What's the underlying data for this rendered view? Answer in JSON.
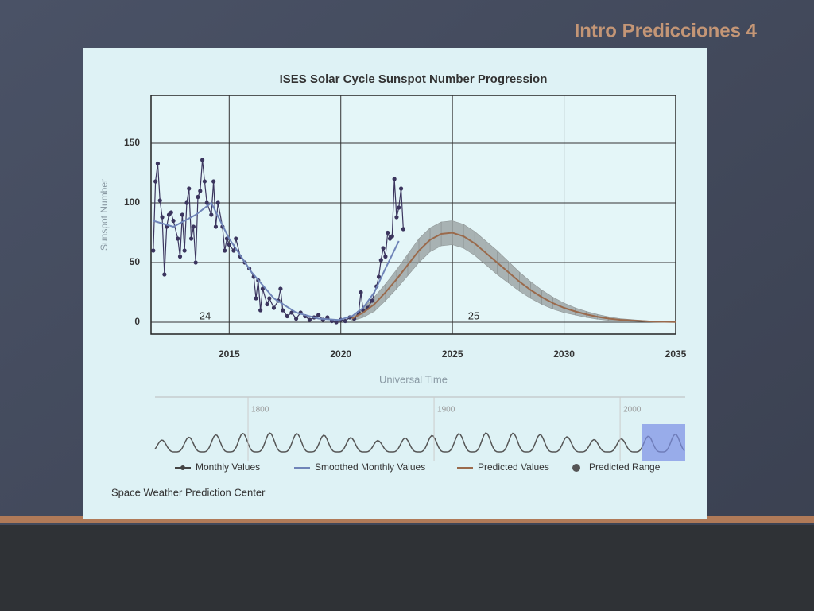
{
  "slide": {
    "title": "Intro Predicciones 4"
  },
  "chart_data": {
    "type": "line",
    "title": "ISES Solar Cycle Sunspot Number Progression",
    "y_label": "Sunspot Number",
    "x_label": "Universal Time",
    "xlim": [
      2011.5,
      2035
    ],
    "xticks": [
      2015,
      2020,
      2025,
      2030,
      2035
    ],
    "ylim": [
      -10,
      190
    ],
    "yticks": [
      0,
      50,
      100,
      150
    ],
    "grid": true,
    "annotations": [
      "24",
      "25"
    ],
    "series": [
      {
        "name": "Monthly Values",
        "color": "#3b355e",
        "x": [
          2011.6,
          2011.7,
          2011.8,
          2011.9,
          2012.0,
          2012.1,
          2012.2,
          2012.3,
          2012.4,
          2012.5,
          2012.7,
          2012.8,
          2012.9,
          2013.0,
          2013.1,
          2013.2,
          2013.3,
          2013.4,
          2013.5,
          2013.6,
          2013.7,
          2013.8,
          2013.9,
          2014.0,
          2014.2,
          2014.3,
          2014.4,
          2014.5,
          2014.7,
          2014.8,
          2014.9,
          2015.0,
          2015.2,
          2015.3,
          2015.5,
          2015.7,
          2015.9,
          2016.1,
          2016.2,
          2016.3,
          2016.4,
          2016.5,
          2016.7,
          2016.8,
          2017.0,
          2017.2,
          2017.3,
          2017.4,
          2017.6,
          2017.8,
          2018.0,
          2018.2,
          2018.4,
          2018.6,
          2018.8,
          2019.0,
          2019.2,
          2019.4,
          2019.6,
          2019.8,
          2020.0,
          2020.2,
          2020.4,
          2020.6,
          2020.8,
          2020.9,
          2021.0,
          2021.2,
          2021.4,
          2021.6,
          2021.7,
          2021.8,
          2021.9,
          2022.0,
          2022.1,
          2022.2,
          2022.3,
          2022.4,
          2022.5,
          2022.6,
          2022.7,
          2022.8
        ],
        "values": [
          60,
          118,
          133,
          102,
          88,
          40,
          80,
          90,
          92,
          85,
          70,
          55,
          90,
          60,
          100,
          112,
          70,
          80,
          50,
          105,
          110,
          136,
          118,
          100,
          90,
          118,
          80,
          100,
          80,
          60,
          70,
          65,
          60,
          70,
          55,
          50,
          45,
          38,
          20,
          35,
          10,
          28,
          15,
          20,
          12,
          18,
          28,
          10,
          5,
          8,
          3,
          8,
          5,
          2,
          4,
          6,
          2,
          4,
          1,
          0,
          2,
          1,
          4,
          3,
          8,
          25,
          10,
          12,
          18,
          30,
          38,
          52,
          62,
          55,
          75,
          70,
          72,
          120,
          88,
          96,
          112,
          78
        ]
      },
      {
        "name": "Smoothed Monthly Values",
        "color": "#6f84b8",
        "x": [
          2011.6,
          2012.5,
          2013.5,
          2014.2,
          2015.0,
          2016.0,
          2017.0,
          2018.0,
          2019.0,
          2019.9,
          2020.5,
          2021.0,
          2021.5,
          2022.0,
          2022.6
        ],
        "values": [
          85,
          80,
          90,
          100,
          70,
          42,
          20,
          8,
          3,
          1.8,
          5,
          12,
          25,
          45,
          68
        ]
      },
      {
        "name": "Predicted Values",
        "color": "#9a6a4c",
        "x": [
          2020.5,
          2021,
          2021.5,
          2022,
          2022.5,
          2023,
          2023.5,
          2024,
          2024.5,
          2025,
          2025.5,
          2026,
          2026.5,
          2027,
          2027.5,
          2028,
          2028.5,
          2029,
          2029.5,
          2030,
          2030.5,
          2031,
          2031.5,
          2032,
          2032.5,
          2033,
          2033.5,
          2034,
          2034.5,
          2035
        ],
        "values": [
          3,
          8,
          15,
          25,
          36,
          48,
          60,
          69,
          74,
          75,
          72,
          66,
          58,
          50,
          42,
          34,
          27,
          21,
          16,
          12,
          9,
          6.5,
          4.5,
          3,
          2,
          1.5,
          1,
          0.5,
          0.3,
          0.2
        ]
      },
      {
        "name": "Predicted Range",
        "color": "#8f9696",
        "x": [
          2020.5,
          2021,
          2021.5,
          2022,
          2022.5,
          2023,
          2023.5,
          2024,
          2024.5,
          2025,
          2025.5,
          2026,
          2026.5,
          2027,
          2027.5,
          2028,
          2028.5,
          2029,
          2029.5,
          2030,
          2030.5,
          2031,
          2031.5,
          2032,
          2032.5,
          2033,
          2033.5,
          2034,
          2034.5,
          2035
        ],
        "low": [
          1,
          4,
          9,
          18,
          28,
          39,
          50,
          59,
          64,
          65,
          62,
          56,
          48,
          40,
          33,
          26,
          20,
          15,
          11,
          8,
          6,
          4,
          2.5,
          1.5,
          1,
          0.8,
          0.5,
          0.2,
          0.1,
          0.1
        ],
        "high": [
          5,
          12,
          21,
          32,
          44,
          57,
          70,
          79,
          84,
          85,
          82,
          76,
          68,
          60,
          51,
          42,
          34,
          27,
          21,
          16,
          12,
          9,
          6.5,
          4.5,
          3,
          2.2,
          1.5,
          0.8,
          0.5,
          0.3
        ]
      }
    ],
    "navigator": {
      "xlim": [
        1750,
        2035
      ],
      "xticks": [
        1800,
        1900,
        2000
      ]
    },
    "credit": "Space Weather Prediction Center"
  }
}
